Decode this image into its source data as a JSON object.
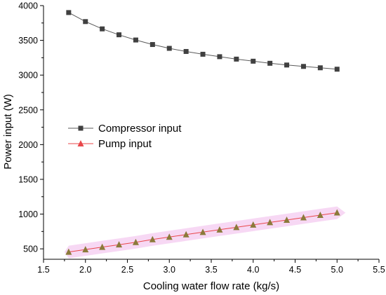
{
  "chart_data": {
    "type": "line",
    "title": "",
    "xlabel": "Cooling water flow rate (kg/s)",
    "ylabel": "Power input (W)",
    "xlim": [
      1.5,
      5.5
    ],
    "ylim": [
      350,
      4000
    ],
    "xticks": [
      "1.5",
      "2.0",
      "2.5",
      "3.0",
      "3.5",
      "4.0",
      "4.5",
      "5.0",
      "5.5"
    ],
    "yticks": [
      "500",
      "1000",
      "1500",
      "2000",
      "2500",
      "3000",
      "3500",
      "4000"
    ],
    "grid": false,
    "legend_position": "center-left",
    "x": [
      1.8,
      2.0,
      2.2,
      2.4,
      2.6,
      2.8,
      3.0,
      3.2,
      3.4,
      3.6,
      3.8,
      4.0,
      4.2,
      4.4,
      4.6,
      4.8,
      5.0
    ],
    "series": [
      {
        "name": "Compressor input",
        "marker": "square",
        "color": "#404040",
        "line_color": "#5a5a5a",
        "values": [
          3900,
          3770,
          3665,
          3580,
          3505,
          3440,
          3385,
          3340,
          3300,
          3265,
          3230,
          3200,
          3170,
          3145,
          3125,
          3105,
          3085
        ]
      },
      {
        "name": "Pump input",
        "marker": "triangle",
        "color": "#8b7a3a",
        "line_color": "#e8474a",
        "band_color": "#f3c8f0",
        "values": [
          455,
          490,
          525,
          560,
          595,
          635,
          670,
          705,
          740,
          775,
          810,
          845,
          880,
          915,
          950,
          985,
          1020
        ]
      }
    ]
  }
}
